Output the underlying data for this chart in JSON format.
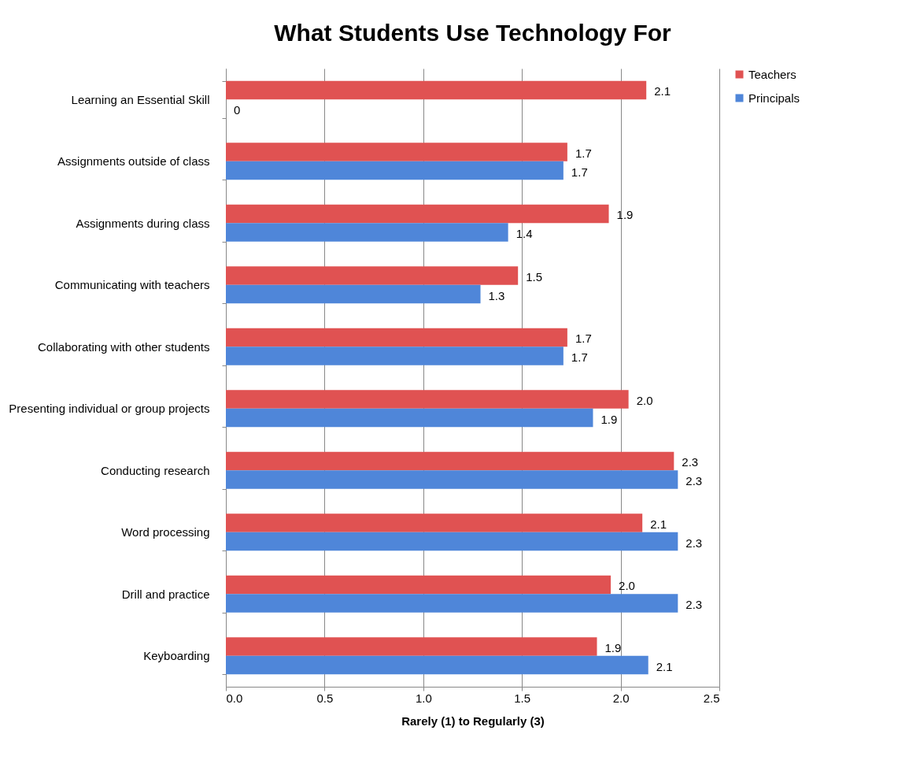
{
  "chart_data": {
    "type": "bar",
    "title": "What Students Use Technology For",
    "xlabel": "Rarely (1) to Regularly (3)",
    "orientation": "horizontal",
    "categories": [
      "Learning an Essential Skill",
      "Assignments outside of class",
      "Assignments during class",
      "Communicating with teachers",
      "Collaborating with other students",
      "Presenting individual or group projects",
      "Conducting research",
      "Word processing",
      "Drill and practice",
      "Keyboarding"
    ],
    "series": [
      {
        "name": "Teachers",
        "color": "#e05252",
        "values": [
          2.13,
          1.73,
          1.94,
          1.48,
          1.73,
          2.04,
          2.27,
          2.11,
          1.95,
          1.88
        ],
        "value_labels": [
          "2.1",
          "1.7",
          "1.9",
          "1.5",
          "1.7",
          "2.0",
          "2.3",
          "2.1",
          "2.0",
          "1.9"
        ]
      },
      {
        "name": "Principals",
        "color": "#4f86d9",
        "values": [
          0,
          1.71,
          1.43,
          1.29,
          1.71,
          1.86,
          2.29,
          2.29,
          2.29,
          2.14
        ],
        "value_labels": [
          "0",
          "1.7",
          "1.4",
          "1.3",
          "1.7",
          "1.9",
          "2.3",
          "2.3",
          "2.3",
          "2.1"
        ]
      }
    ],
    "xlim": [
      0,
      2.5
    ],
    "xticks": [
      {
        "value": 0,
        "label": "0.0"
      },
      0.5,
      {
        "value": 1,
        "label": "1.0"
      },
      1.5,
      {
        "value": 2,
        "label": "2.0"
      },
      2.5
    ],
    "grid": "x",
    "legend": "right"
  }
}
